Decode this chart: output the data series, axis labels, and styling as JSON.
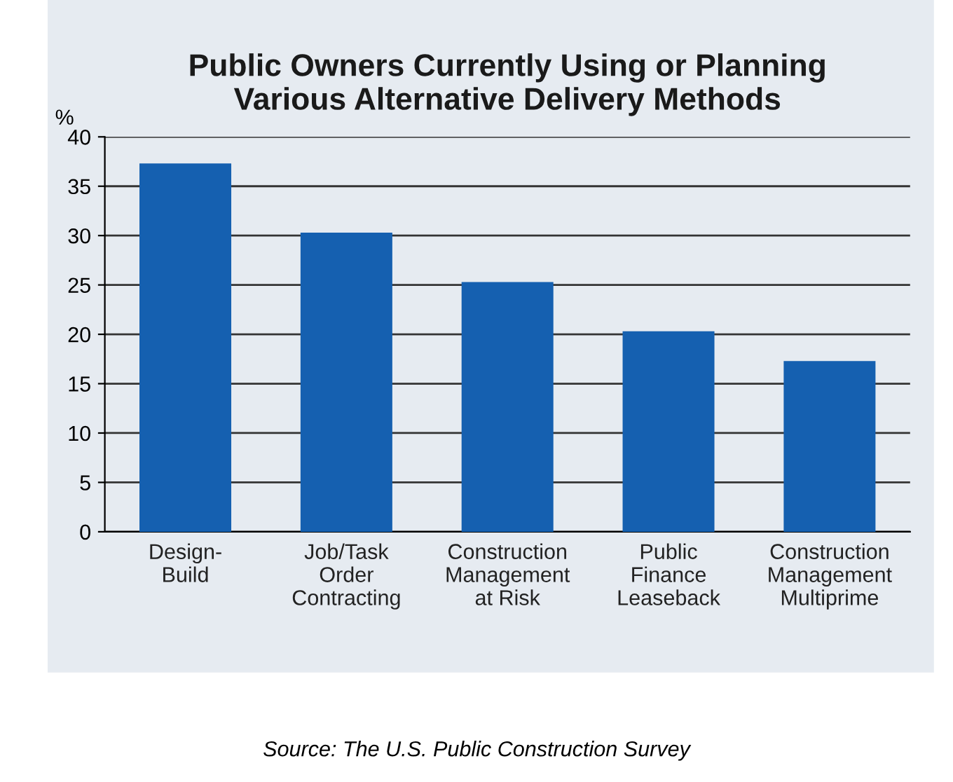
{
  "chart_data": {
    "type": "bar",
    "title": "Public Owners Currently Using or Planning\nVarious Alternative Delivery Methods",
    "ylabel": "%",
    "categories": [
      "Design-\nBuild",
      "Job/Task\nOrder\nContracting",
      "Construction\nManagement\nat Risk",
      "Public\nFinance\nLeaseback",
      "Construction\nManagement\nMultiprime"
    ],
    "values": [
      37.3,
      30.3,
      25.3,
      20.3,
      17.3
    ],
    "color": "#1560b0",
    "ylim": [
      0,
      40
    ],
    "yticks": [
      0,
      5,
      10,
      15,
      20,
      25,
      30,
      35,
      40
    ],
    "grid": "y",
    "annotations": [
      "Source: The U.S. Public Construction Survey"
    ]
  }
}
